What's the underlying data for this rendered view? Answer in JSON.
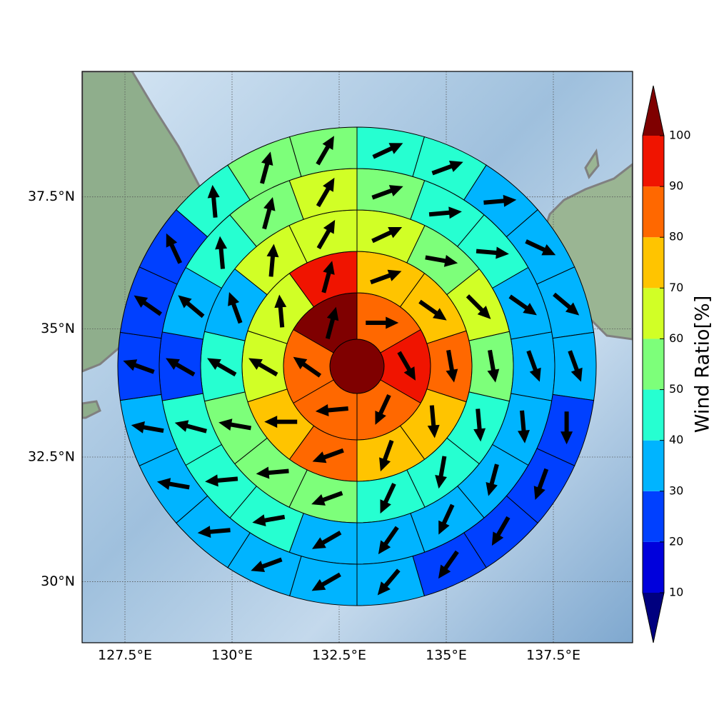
{
  "chart_data": {
    "type": "polar_sector_map",
    "xlim": [
      126.5,
      139.35
    ],
    "ylim": [
      28.75,
      39.8
    ],
    "xticks": [
      {
        "value": 127.5,
        "label": "127.5°E"
      },
      {
        "value": 130,
        "label": "130°E"
      },
      {
        "value": 132.5,
        "label": "132.5°E"
      },
      {
        "value": 135,
        "label": "135°E"
      },
      {
        "value": 137.5,
        "label": "137.5°E"
      }
    ],
    "yticks": [
      {
        "value": 30,
        "label": "30°N"
      },
      {
        "value": 32.5,
        "label": "32.5°N"
      },
      {
        "value": 35,
        "label": "35°N"
      },
      {
        "value": 37.5,
        "label": "37.5°N"
      }
    ],
    "grid": true,
    "rings": [
      {
        "values": [
          105
        ],
        "directions": [
          null
        ]
      },
      {
        "values": [
          85,
          95,
          85,
          85,
          85,
          105
        ],
        "directions": [
          90,
          150,
          205,
          265,
          305,
          15
        ]
      },
      {
        "values": [
          75,
          75,
          85,
          75,
          75,
          85,
          75,
          65,
          65,
          95
        ],
        "directions": [
          70,
          125,
          170,
          175,
          200,
          250,
          270,
          300,
          355,
          15
        ]
      },
      {
        "values": [
          65,
          55,
          65,
          55,
          45,
          45,
          45,
          55,
          55,
          55,
          45,
          35,
          65,
          65
        ],
        "directions": [
          65,
          100,
          135,
          170,
          175,
          190,
          205,
          250,
          265,
          280,
          300,
          340,
          5,
          30
        ]
      },
      {
        "values": [
          55,
          45,
          45,
          35,
          35,
          35,
          35,
          35,
          35,
          35,
          45,
          45,
          45,
          25,
          35,
          45,
          55,
          65
        ],
        "directions": [
          70,
          85,
          95,
          125,
          160,
          175,
          195,
          205,
          215,
          240,
          260,
          265,
          285,
          300,
          310,
          355,
          15,
          30
        ]
      },
      {
        "values": [
          45,
          45,
          35,
          35,
          35,
          35,
          25,
          25,
          25,
          25,
          35,
          35,
          35,
          35,
          35,
          35,
          25,
          25,
          25,
          45,
          55,
          55
        ],
        "directions": [
          65,
          70,
          85,
          115,
          130,
          160,
          180,
          200,
          210,
          215,
          220,
          240,
          250,
          265,
          280,
          280,
          290,
          305,
          335,
          355,
          15,
          30
        ]
      }
    ],
    "colorbar": {
      "label": "Wind Ratio[%]",
      "ticks": [
        10,
        20,
        30,
        40,
        50,
        60,
        70,
        80,
        90,
        100
      ],
      "colors": [
        "#0000dc",
        "#0040ff",
        "#00b4ff",
        "#26ffd1",
        "#7dff7a",
        "#d1ff26",
        "#ffc400",
        "#ff6800",
        "#f01400"
      ],
      "under_color": "#00007f",
      "over_color": "#7f0000"
    }
  }
}
